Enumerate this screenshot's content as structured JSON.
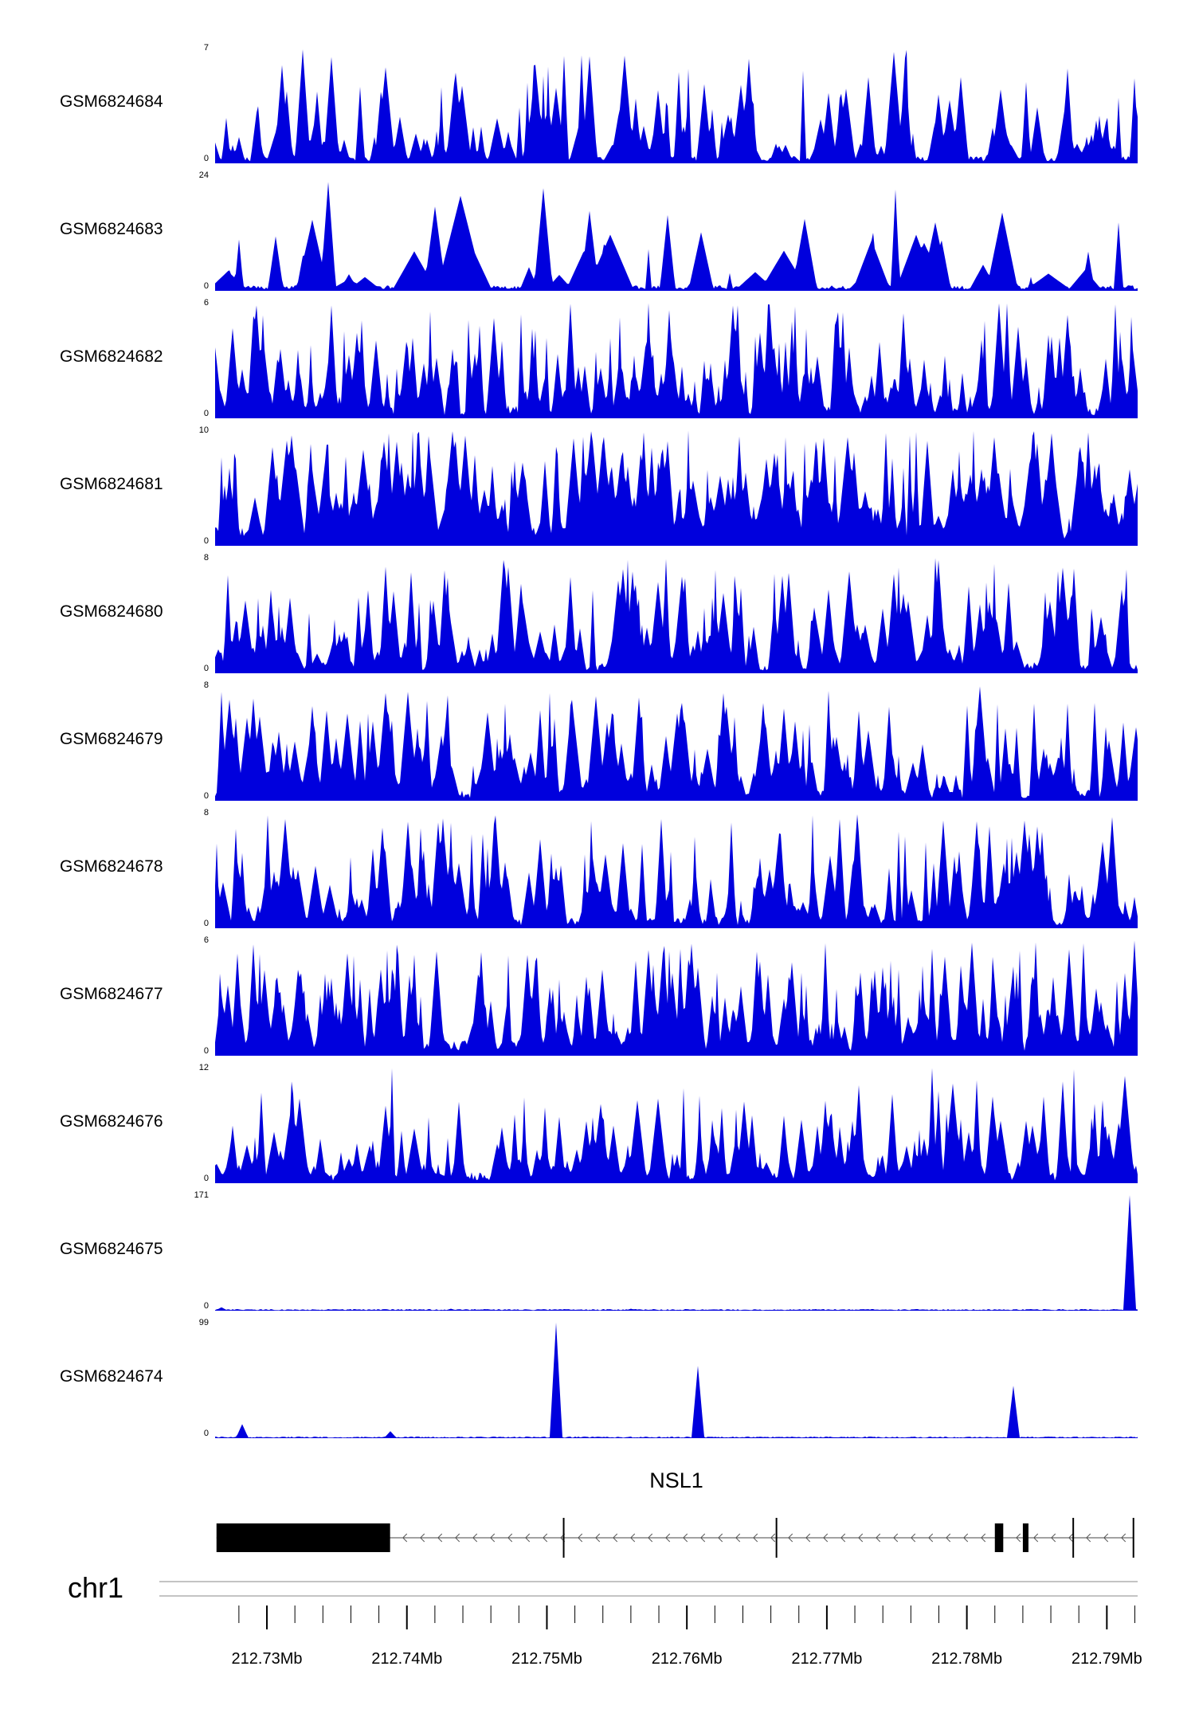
{
  "signal_color": "#0000dd",
  "chart_data": {
    "type": "area",
    "subtype": "genome-browser-coverage-tracks",
    "region": {
      "chromosome": "chr1",
      "start_mb": 212.7263,
      "end_mb": 212.7922
    },
    "tracks": [
      {
        "name": "GSM6824684",
        "ymax": 7,
        "ymin": 0,
        "profile": {
          "seed": 101,
          "base": 0.04,
          "density": 0.28,
          "pow": 2.4,
          "width": 5,
          "peak_min": 0.15
        }
      },
      {
        "name": "GSM6824683",
        "ymax": 24,
        "ymin": 0,
        "profile": {
          "seed": 102,
          "base": 0.03,
          "density": 0.1,
          "pow": 2.8,
          "width": 14,
          "peak_min": 0.1
        }
      },
      {
        "name": "GSM6824682",
        "ymax": 6,
        "ymin": 0,
        "profile": {
          "seed": 103,
          "base": 0.07,
          "density": 0.45,
          "pow": 1.9,
          "width": 4,
          "peak_min": 0.18
        }
      },
      {
        "name": "GSM6824681",
        "ymax": 10,
        "ymin": 0,
        "profile": {
          "seed": 104,
          "base": 0.1,
          "density": 0.55,
          "pow": 1.6,
          "width": 6,
          "peak_min": 0.22
        }
      },
      {
        "name": "GSM6824680",
        "ymax": 8,
        "ymin": 0,
        "profile": {
          "seed": 105,
          "base": 0.06,
          "density": 0.38,
          "pow": 2.1,
          "width": 5,
          "peak_min": 0.17
        }
      },
      {
        "name": "GSM6824679",
        "ymax": 8,
        "ymin": 0,
        "profile": {
          "seed": 106,
          "base": 0.06,
          "density": 0.4,
          "pow": 2.1,
          "width": 5,
          "peak_min": 0.17
        }
      },
      {
        "name": "GSM6824678",
        "ymax": 8,
        "ymin": 0,
        "profile": {
          "seed": 107,
          "base": 0.06,
          "density": 0.38,
          "pow": 2.2,
          "width": 5,
          "peak_min": 0.17
        }
      },
      {
        "name": "GSM6824677",
        "ymax": 6,
        "ymin": 0,
        "profile": {
          "seed": 108,
          "base": 0.09,
          "density": 0.5,
          "pow": 1.8,
          "width": 4,
          "peak_min": 0.2
        }
      },
      {
        "name": "GSM6824676",
        "ymax": 12,
        "ymin": 0,
        "profile": {
          "seed": 109,
          "base": 0.06,
          "density": 0.33,
          "pow": 2.5,
          "width": 5,
          "peak_min": 0.15
        }
      },
      {
        "name": "GSM6824675",
        "ymax": 171,
        "ymin": 0,
        "profile": {
          "seed": 110,
          "sparse": true
        },
        "peaks_mb": [
          {
            "mb": 212.7268,
            "value": 5
          },
          {
            "mb": 212.7432,
            "value": 3
          },
          {
            "mb": 212.756,
            "value": 3
          },
          {
            "mb": 212.7916,
            "value": 171
          }
        ]
      },
      {
        "name": "GSM6824674",
        "ymax": 99,
        "ymin": 0,
        "profile": {
          "seed": 111,
          "sparse": true
        },
        "peaks_mb": [
          {
            "mb": 212.7282,
            "value": 12
          },
          {
            "mb": 212.7388,
            "value": 6
          },
          {
            "mb": 212.7506,
            "value": 99
          },
          {
            "mb": 212.7608,
            "value": 62
          },
          {
            "mb": 212.7833,
            "value": 45
          }
        ]
      }
    ],
    "gene_track": {
      "gene_label": "NSL1",
      "strand": "-",
      "features": [
        {
          "type": "exon",
          "start_mb": 212.7264,
          "end_mb": 212.7388
        },
        {
          "type": "boundary",
          "mb": 212.7512
        },
        {
          "type": "boundary",
          "mb": 212.7664
        },
        {
          "type": "exon",
          "start_mb": 212.782,
          "end_mb": 212.7826
        },
        {
          "type": "exon",
          "start_mb": 212.784,
          "end_mb": 212.7844
        },
        {
          "type": "boundary",
          "mb": 212.7876
        },
        {
          "type": "boundary",
          "mb": 212.7919
        }
      ]
    },
    "axis": {
      "chromosome_label": "chr1",
      "major_ticks": [
        {
          "mb": 212.73,
          "label": "212.73Mb"
        },
        {
          "mb": 212.74,
          "label": "212.74Mb"
        },
        {
          "mb": 212.75,
          "label": "212.75Mb"
        },
        {
          "mb": 212.76,
          "label": "212.76Mb"
        },
        {
          "mb": 212.77,
          "label": "212.77Mb"
        },
        {
          "mb": 212.78,
          "label": "212.78Mb"
        },
        {
          "mb": 212.79,
          "label": "212.79Mb"
        }
      ],
      "minor_tick_step_mb": 0.002
    }
  }
}
